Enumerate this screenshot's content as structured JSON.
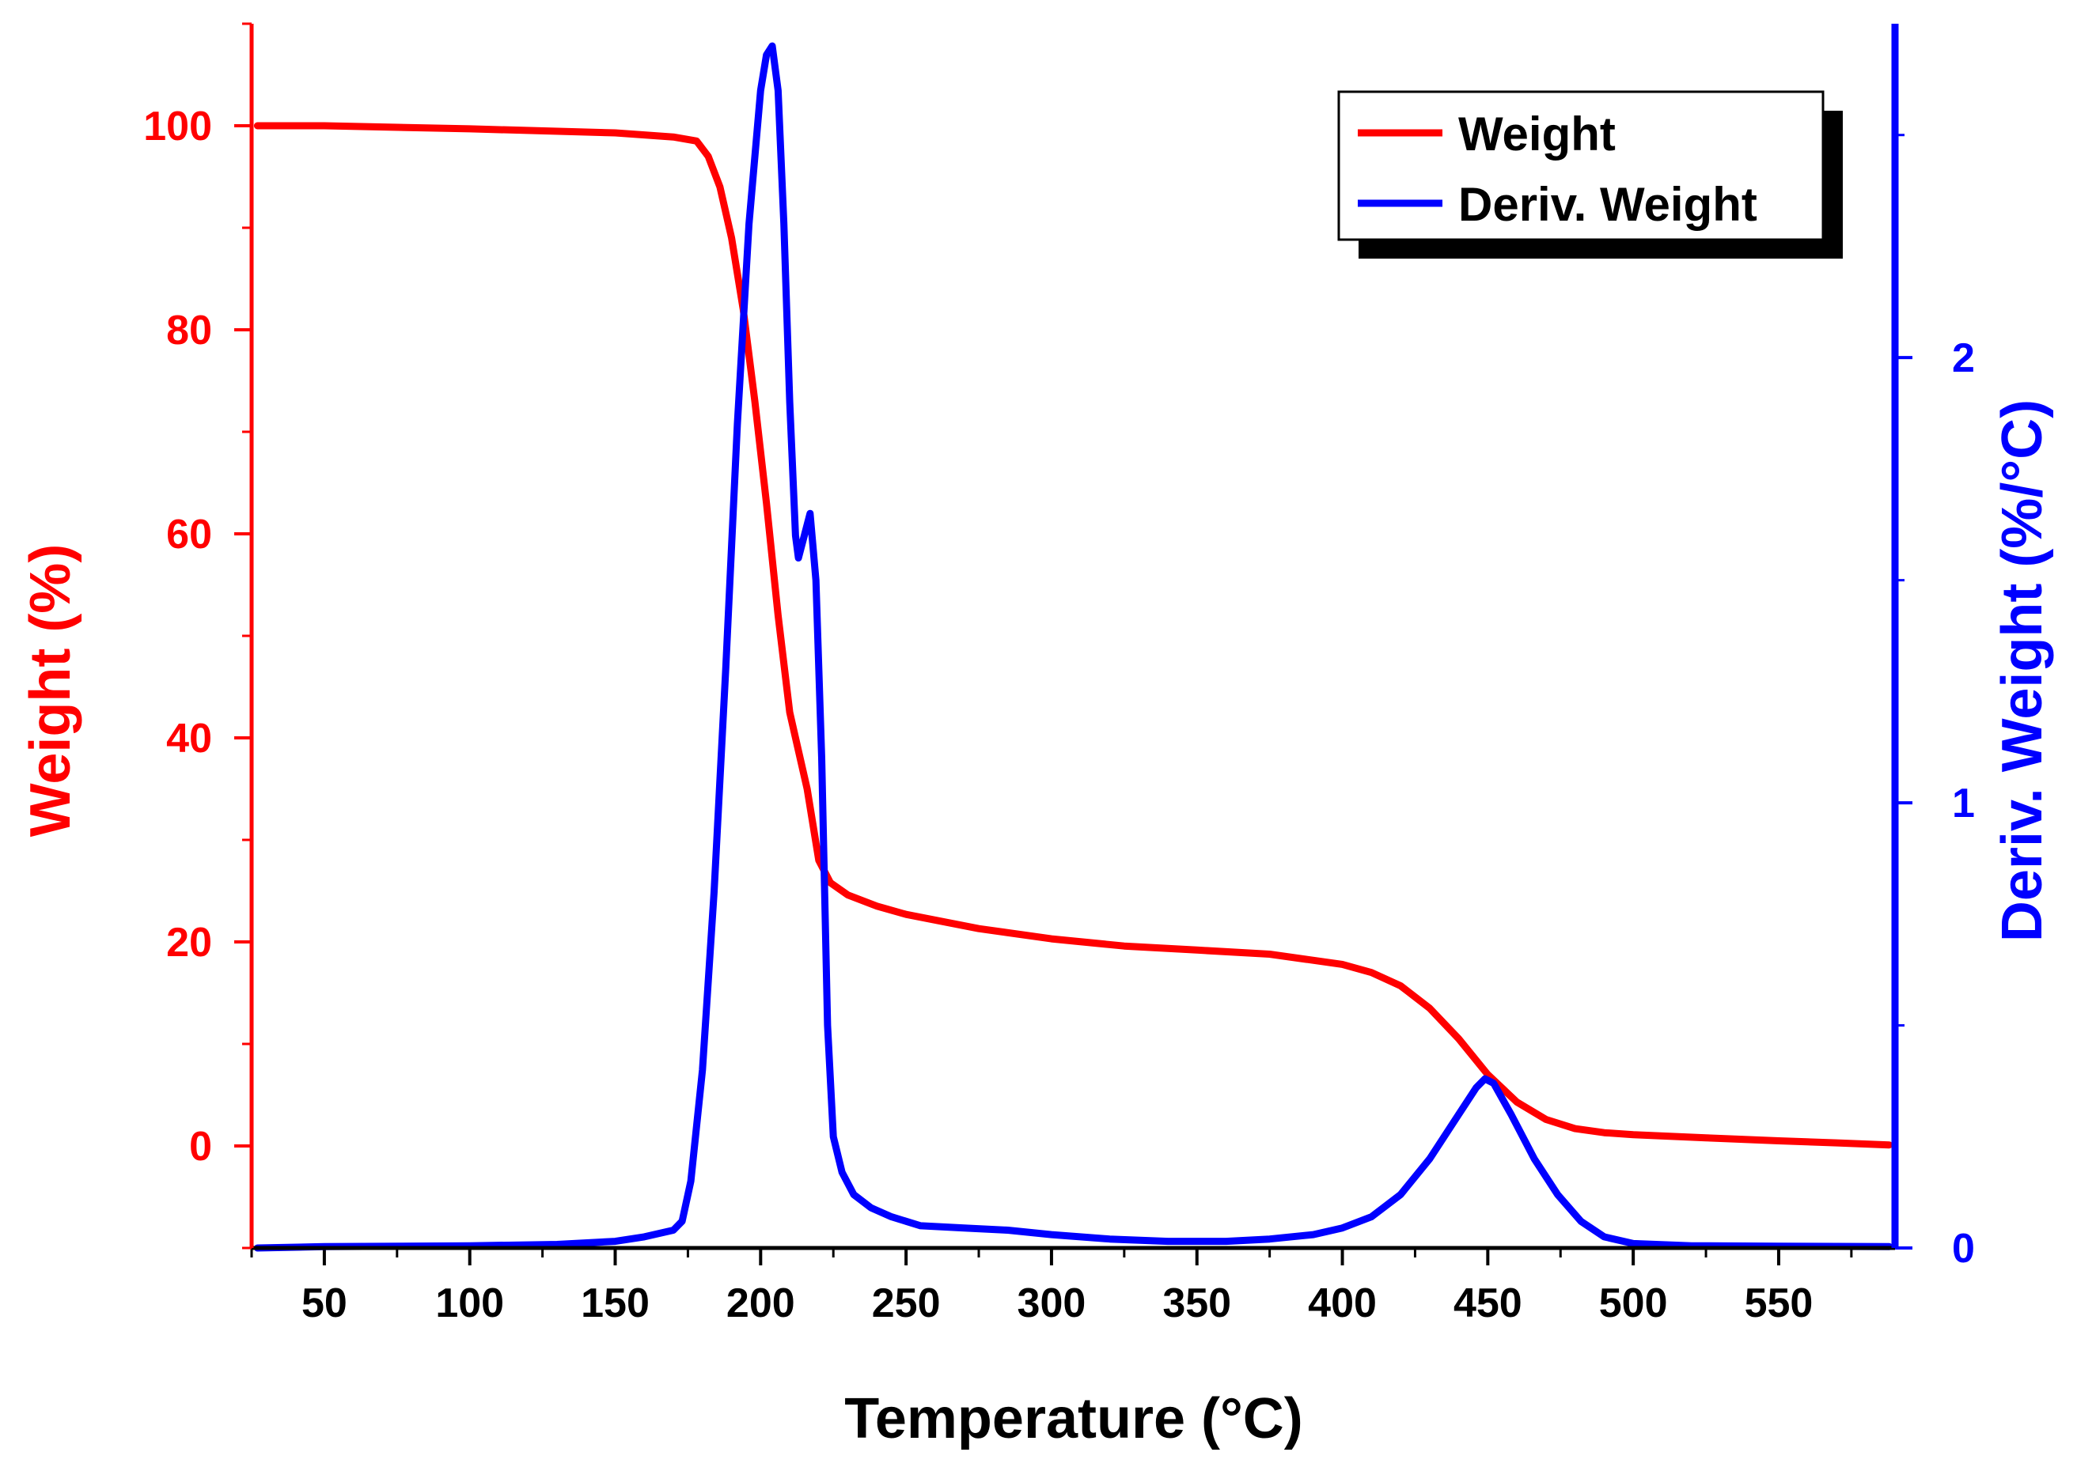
{
  "chart_data": {
    "type": "line",
    "xlabel": "Temperature (°C)",
    "ylabel_left": "Weight (%)",
    "ylabel_right": "Deriv. Weight (%/°C)",
    "xlim": [
      25,
      590
    ],
    "ylim_left": [
      -10,
      110
    ],
    "ylim_right": [
      0,
      2.75
    ],
    "x_ticks": [
      50,
      100,
      150,
      200,
      250,
      300,
      350,
      400,
      450,
      500,
      550
    ],
    "y_left_ticks": [
      0,
      20,
      40,
      60,
      80,
      100
    ],
    "y_right_ticks": [
      0,
      1,
      2
    ],
    "legend": {
      "placement": "top-right",
      "entries": [
        "Weight",
        "Deriv. Weight"
      ]
    },
    "colors": {
      "weight": "#ff0000",
      "deriv": "#0000ff",
      "axis_left": "#ff0000",
      "axis_right": "#0000ff"
    },
    "series": [
      {
        "name": "Weight",
        "axis": "left",
        "x": [
          27,
          50,
          100,
          150,
          170,
          178,
          182,
          186,
          190,
          194,
          198,
          202,
          206,
          210,
          212,
          216,
          220,
          224,
          230,
          240,
          250,
          275,
          300,
          325,
          350,
          375,
          400,
          410,
          420,
          430,
          440,
          450,
          460,
          470,
          480,
          490,
          500,
          525,
          550,
          570,
          588
        ],
        "y": [
          100,
          100,
          99.7,
          99.3,
          98.9,
          98.5,
          97,
          94,
          89,
          82,
          73,
          63,
          52,
          42.5,
          40,
          35,
          28,
          25.8,
          24.6,
          23.5,
          22.7,
          21.3,
          20.3,
          19.6,
          19.2,
          18.8,
          17.8,
          17,
          15.7,
          13.5,
          10.5,
          7,
          4.3,
          2.6,
          1.7,
          1.3,
          1.1,
          0.8,
          0.5,
          0.3,
          0.1
        ]
      },
      {
        "name": "Deriv. Weight",
        "axis": "right",
        "x": [
          27,
          50,
          100,
          130,
          150,
          160,
          170,
          173,
          176,
          180,
          184,
          188,
          192,
          196,
          200,
          202,
          204,
          206,
          208,
          210,
          212,
          213,
          215,
          217,
          219,
          221,
          223,
          225,
          228,
          232,
          238,
          245,
          255,
          270,
          285,
          300,
          320,
          340,
          360,
          375,
          390,
          400,
          410,
          420,
          430,
          440,
          446,
          449,
          452,
          458,
          466,
          474,
          482,
          490,
          500,
          520,
          550,
          588
        ],
        "y": [
          0,
          0.003,
          0.005,
          0.008,
          0.015,
          0.025,
          0.04,
          0.06,
          0.15,
          0.4,
          0.8,
          1.3,
          1.85,
          2.3,
          2.6,
          2.68,
          2.7,
          2.6,
          2.3,
          1.9,
          1.6,
          1.55,
          1.6,
          1.65,
          1.5,
          1.1,
          0.5,
          0.25,
          0.17,
          0.12,
          0.09,
          0.07,
          0.05,
          0.045,
          0.04,
          0.03,
          0.02,
          0.015,
          0.015,
          0.02,
          0.03,
          0.045,
          0.07,
          0.12,
          0.2,
          0.3,
          0.36,
          0.38,
          0.37,
          0.3,
          0.2,
          0.12,
          0.06,
          0.025,
          0.01,
          0.005,
          0.004,
          0.003
        ]
      }
    ]
  }
}
